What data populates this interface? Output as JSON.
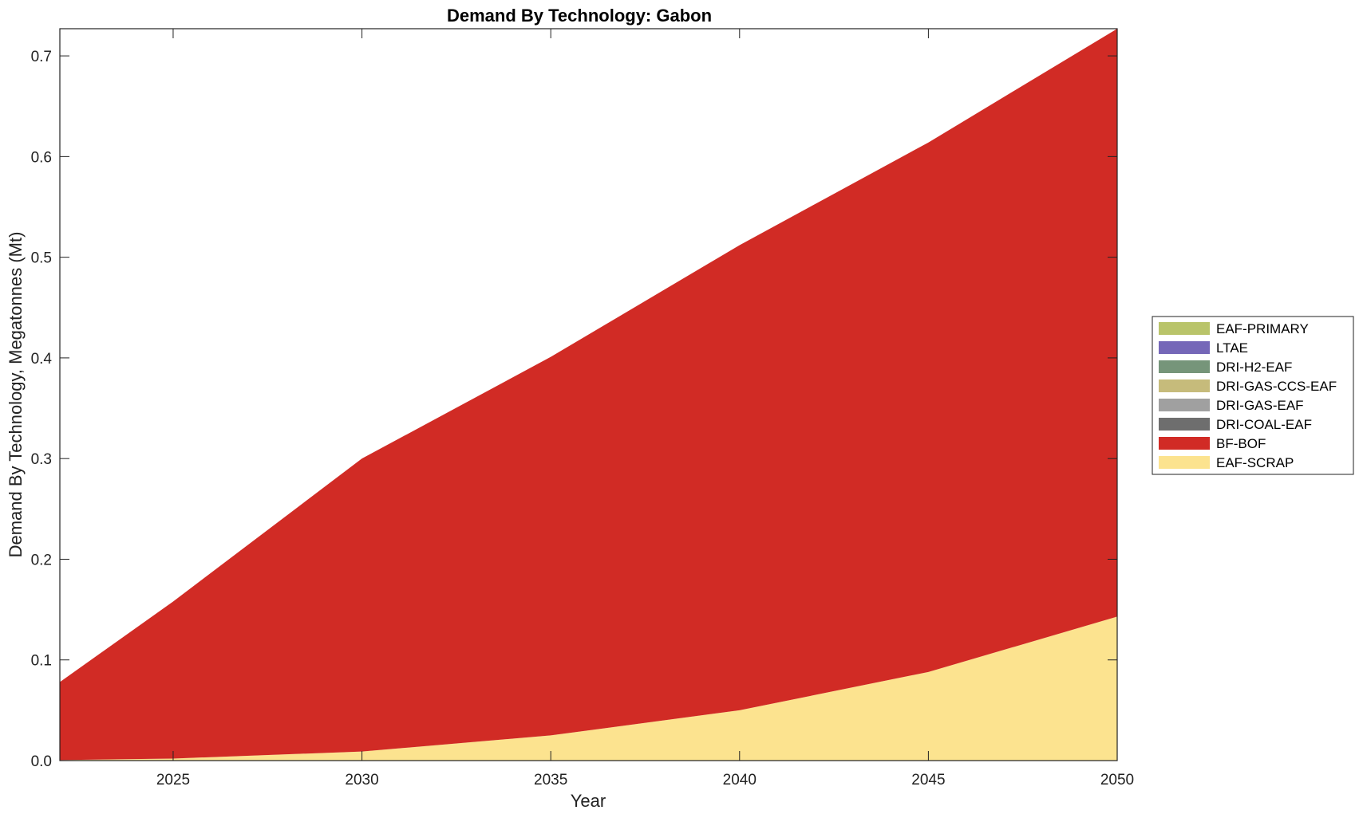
{
  "chart_data": {
    "type": "area",
    "stacked": true,
    "title": "Demand By Technology: Gabon",
    "xlabel": "Year",
    "ylabel": "Demand By Technology, Megatonnes (Mt)",
    "xlim": [
      2022,
      2050
    ],
    "ylim": [
      0,
      0.727
    ],
    "x": [
      2022,
      2025,
      2030,
      2035,
      2040,
      2045,
      2050
    ],
    "xticks": [
      2025,
      2030,
      2035,
      2040,
      2045,
      2050
    ],
    "yticks": [
      0.0,
      0.1,
      0.2,
      0.3,
      0.4,
      0.5,
      0.6,
      0.7
    ],
    "ytick_labels": [
      "0.0",
      "0.1",
      "0.2",
      "0.3",
      "0.4",
      "0.5",
      "0.6",
      "0.7"
    ],
    "grid": false,
    "legend_position": "right",
    "series": [
      {
        "name": "EAF-SCRAP",
        "color": "#FCE38F",
        "values": [
          0.0005,
          0.002,
          0.009,
          0.025,
          0.05,
          0.088,
          0.143
        ]
      },
      {
        "name": "BF-BOF",
        "color": "#D12B25",
        "values": [
          0.0775,
          0.156,
          0.291,
          0.376,
          0.462,
          0.526,
          0.584
        ]
      },
      {
        "name": "DRI-COAL-EAF",
        "color": "#6E6E6E",
        "values": [
          0,
          0,
          0,
          0,
          0,
          0,
          0
        ]
      },
      {
        "name": "DRI-GAS-EAF",
        "color": "#A0A0A0",
        "values": [
          0,
          0,
          0,
          0,
          0,
          0,
          0
        ]
      },
      {
        "name": "DRI-GAS-CCS-EAF",
        "color": "#C6BB7B",
        "values": [
          0,
          0,
          0,
          0,
          0,
          0,
          0
        ]
      },
      {
        "name": "DRI-H2-EAF",
        "color": "#76957A",
        "values": [
          0,
          0,
          0,
          0,
          0,
          0,
          0
        ]
      },
      {
        "name": "LTAE",
        "color": "#7567B8",
        "values": [
          0,
          0,
          0,
          0,
          0,
          0,
          0
        ]
      },
      {
        "name": "EAF-PRIMARY",
        "color": "#B9C46A",
        "values": [
          0,
          0,
          0,
          0,
          0,
          0,
          0
        ]
      }
    ],
    "legend_order": [
      "EAF-PRIMARY",
      "LTAE",
      "DRI-H2-EAF",
      "DRI-GAS-CCS-EAF",
      "DRI-GAS-EAF",
      "DRI-COAL-EAF",
      "BF-BOF",
      "EAF-SCRAP"
    ]
  }
}
